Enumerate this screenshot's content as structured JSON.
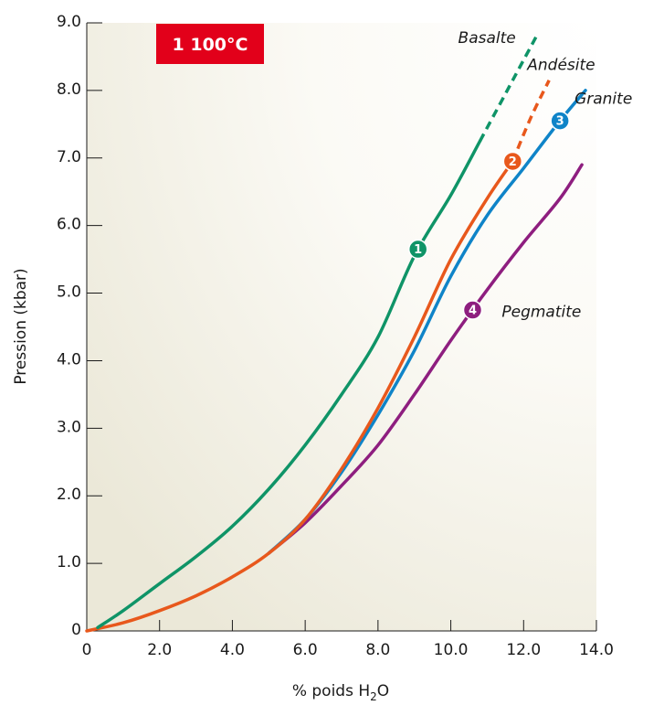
{
  "chart_data": {
    "type": "line",
    "title": "",
    "xlabel": "% poids H",
    "xlabel_sub": "2",
    "xlabel_end": "O",
    "ylabel": "Pression (kbar)",
    "xlim": [
      0,
      14
    ],
    "ylim": [
      0,
      9
    ],
    "x_ticks": [
      0,
      2,
      4,
      6,
      8,
      10,
      12,
      14
    ],
    "x_tick_labels": [
      "0",
      "2.0",
      "4.0",
      "6.0",
      "8.0",
      "10.0",
      "12.0",
      "14.0"
    ],
    "y_ticks": [
      0,
      1,
      2,
      3,
      4,
      5,
      6,
      7,
      8,
      9
    ],
    "y_tick_labels": [
      "0",
      "1.0",
      "2.0",
      "3.0",
      "4.0",
      "5.0",
      "6.0",
      "7.0",
      "8.0",
      "9.0"
    ],
    "grid": false,
    "annotation": {
      "text": "1 100°C",
      "color": "#e2001a"
    },
    "series": [
      {
        "name": "Basalte",
        "color": "#0f9467",
        "marker": "1",
        "marker_at": [
          9.1,
          5.65
        ],
        "label_at": [
          10.2,
          8.7
        ],
        "solid": [
          [
            0.3,
            0.05
          ],
          [
            1.0,
            0.3
          ],
          [
            2.0,
            0.7
          ],
          [
            3.0,
            1.1
          ],
          [
            4.0,
            1.55
          ],
          [
            5.0,
            2.1
          ],
          [
            6.0,
            2.75
          ],
          [
            7.0,
            3.5
          ],
          [
            8.0,
            4.35
          ],
          [
            9.0,
            5.55
          ],
          [
            10.0,
            6.45
          ],
          [
            10.8,
            7.25
          ]
        ],
        "dashed": [
          [
            10.8,
            7.25
          ],
          [
            11.5,
            7.95
          ],
          [
            12.0,
            8.45
          ],
          [
            12.4,
            8.85
          ]
        ]
      },
      {
        "name": "Andésite",
        "color": "#e8581c",
        "marker": "2",
        "marker_at": [
          11.7,
          6.95
        ],
        "label_at": [
          12.1,
          8.3
        ],
        "solid": [
          [
            0,
            0
          ],
          [
            1.0,
            0.12
          ],
          [
            2.0,
            0.3
          ],
          [
            3.0,
            0.52
          ],
          [
            4.0,
            0.8
          ],
          [
            5.0,
            1.15
          ],
          [
            6.0,
            1.65
          ],
          [
            7.0,
            2.4
          ],
          [
            8.0,
            3.3
          ],
          [
            9.0,
            4.35
          ],
          [
            10.0,
            5.5
          ],
          [
            11.0,
            6.4
          ],
          [
            11.7,
            6.95
          ]
        ],
        "dashed": [
          [
            11.7,
            6.95
          ],
          [
            12.2,
            7.6
          ],
          [
            12.7,
            8.15
          ]
        ]
      },
      {
        "name": "Granite",
        "color": "#0f84c8",
        "marker": "3",
        "marker_at": [
          13.0,
          7.55
        ],
        "label_at": [
          13.4,
          7.8
        ],
        "solid": [
          [
            5.0,
            1.15
          ],
          [
            6.0,
            1.65
          ],
          [
            7.0,
            2.35
          ],
          [
            8.0,
            3.2
          ],
          [
            9.0,
            4.15
          ],
          [
            10.0,
            5.25
          ],
          [
            11.0,
            6.15
          ],
          [
            12.0,
            6.85
          ],
          [
            13.0,
            7.55
          ],
          [
            13.7,
            8.0
          ]
        ],
        "dashed": []
      },
      {
        "name": "Pegmatite",
        "color": "#8e1e7f",
        "marker": "4",
        "marker_at": [
          10.6,
          4.75
        ],
        "label_at": [
          11.4,
          4.65
        ],
        "solid": [
          [
            5.0,
            1.15
          ],
          [
            6.0,
            1.6
          ],
          [
            7.0,
            2.15
          ],
          [
            8.0,
            2.75
          ],
          [
            9.0,
            3.5
          ],
          [
            10.0,
            4.3
          ],
          [
            11.0,
            5.05
          ],
          [
            12.0,
            5.75
          ],
          [
            13.0,
            6.4
          ],
          [
            13.6,
            6.9
          ]
        ],
        "dashed": []
      }
    ]
  }
}
